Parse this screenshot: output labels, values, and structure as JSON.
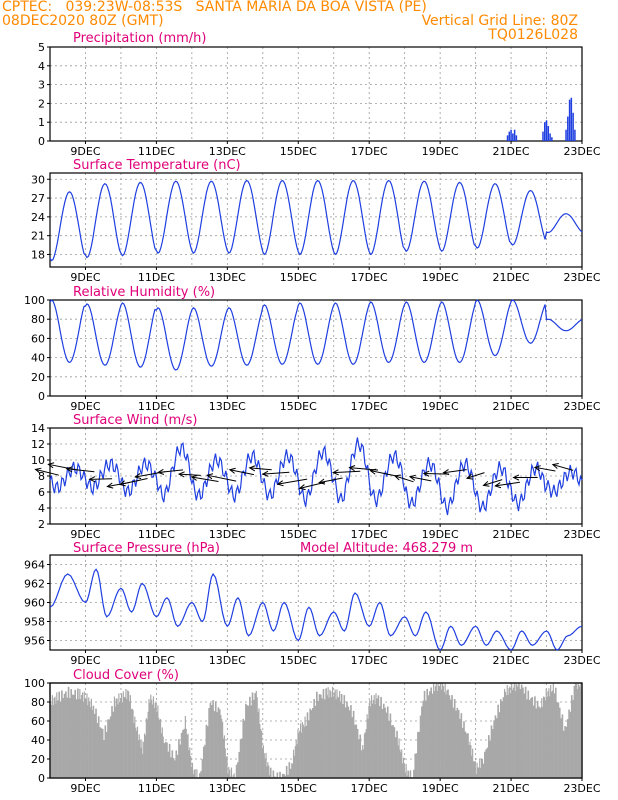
{
  "header": {
    "line1": "CPTEC:   039:23W-08:53S   SANTA MARIA DA BOA VISTA (PE)",
    "line2_left": "08DEC2020 80Z (GMT)",
    "line2_right": "Vertical Grid Line: 80Z",
    "line3_right": "TQ0126L028"
  },
  "colors": {
    "header": "#ff8a00",
    "title": "#e0007a",
    "series": "#1f3fe0",
    "cloud": "#a8a8a8",
    "grid": "#9a9a9a"
  },
  "x_ticks": [
    "9DEC",
    "11DEC",
    "13DEC",
    "15DEC",
    "17DEC",
    "19DEC",
    "21DEC",
    "23DEC"
  ],
  "chart_data": [
    {
      "type": "bar",
      "title": "Precipitation (mm/h)",
      "x_range_days": [
        8,
        23
      ],
      "ylim": [
        0,
        5
      ],
      "yticks": [
        0,
        1,
        2,
        3,
        4,
        5
      ],
      "x": [
        20.9,
        20.95,
        21.0,
        21.05,
        21.1,
        21.15,
        21.9,
        21.95,
        22.0,
        22.05,
        22.1,
        22.15,
        22.55,
        22.6,
        22.65,
        22.7,
        22.75,
        22.8
      ],
      "values": [
        0.3,
        0.5,
        0.6,
        0.4,
        0.6,
        0.3,
        0.5,
        1.0,
        1.1,
        0.8,
        0.4,
        0.2,
        0.6,
        1.3,
        2.2,
        2.3,
        1.5,
        0.6
      ]
    },
    {
      "type": "line",
      "title": "Surface Temperature (nC)",
      "x_range_days": [
        8,
        23
      ],
      "ylim": [
        16,
        31
      ],
      "yticks": [
        18,
        21,
        24,
        27,
        30
      ],
      "daily_max": [
        28.0,
        29.3,
        29.5,
        29.7,
        29.7,
        29.8,
        29.8,
        29.8,
        29.8,
        29.8,
        29.7,
        29.5,
        29.3,
        28.2,
        24.5
      ],
      "daily_min": [
        17.0,
        17.5,
        17.8,
        18.2,
        18.2,
        18.2,
        18.0,
        18.0,
        18.0,
        18.0,
        18.5,
        18.5,
        19.0,
        19.5,
        21.5
      ]
    },
    {
      "type": "line",
      "title": "Relative Humidity (%)",
      "x_range_days": [
        8,
        23
      ],
      "ylim": [
        0,
        100
      ],
      "yticks": [
        0,
        20,
        40,
        60,
        80,
        100
      ],
      "daily_max": [
        100,
        96,
        97,
        92,
        92,
        92,
        95,
        97,
        97,
        98,
        98,
        98,
        100,
        100,
        80
      ],
      "daily_min": [
        35,
        32,
        30,
        27,
        31,
        32,
        33,
        33,
        33,
        35,
        35,
        35,
        42,
        55,
        68
      ]
    },
    {
      "type": "line",
      "title": "Surface Wind (m/s)",
      "x_range_days": [
        8,
        23
      ],
      "ylim": [
        2,
        14
      ],
      "yticks": [
        2,
        4,
        6,
        8,
        10,
        12,
        14
      ],
      "daily_max": [
        9.0,
        9.5,
        9.5,
        11.5,
        10.0,
        10.5,
        10.5,
        11.0,
        12.0,
        10.5,
        9.5,
        9.5,
        9.0,
        9.0,
        8.5
      ],
      "daily_min": [
        6.5,
        6.5,
        6.0,
        5.5,
        5.5,
        5.5,
        5.5,
        5.0,
        5.0,
        5.0,
        4.5,
        4.0,
        4.0,
        4.5,
        6.0
      ],
      "direction": "easterly (arrows point west)"
    },
    {
      "type": "line",
      "title": "Surface Pressure (hPa)",
      "annotation": "Model Altitude: 468.279 m",
      "x_range_days": [
        8,
        23
      ],
      "ylim": [
        955,
        965
      ],
      "yticks": [
        956,
        958,
        960,
        962,
        964
      ],
      "x": [
        8.0,
        8.5,
        9.0,
        9.3,
        9.6,
        10.0,
        10.3,
        10.6,
        11.0,
        11.3,
        11.6,
        12.0,
        12.3,
        12.6,
        13.0,
        13.3,
        13.6,
        14.0,
        14.3,
        14.6,
        15.0,
        15.3,
        15.6,
        16.0,
        16.3,
        16.6,
        17.0,
        17.3,
        17.6,
        18.0,
        18.3,
        18.6,
        19.0,
        19.3,
        19.6,
        20.0,
        20.3,
        20.6,
        21.0,
        21.3,
        21.6,
        22.0,
        22.3,
        22.6,
        23.0
      ],
      "values": [
        959.5,
        963.0,
        960.0,
        963.5,
        958.5,
        961.5,
        959.0,
        962.0,
        958.5,
        960.5,
        957.5,
        960.0,
        958.0,
        963.0,
        957.5,
        960.5,
        956.5,
        960.0,
        957.0,
        960.0,
        956.0,
        959.5,
        956.5,
        959.0,
        957.0,
        961.0,
        957.5,
        960.0,
        956.5,
        958.5,
        956.5,
        959.0,
        955.0,
        957.5,
        955.5,
        957.5,
        955.5,
        957.0,
        955.0,
        957.0,
        955.5,
        957.0,
        955.0,
        956.5,
        957.5
      ]
    },
    {
      "type": "area",
      "title": "Cloud Cover (%)",
      "x_range_days": [
        8,
        23
      ],
      "ylim": [
        0,
        100
      ],
      "yticks": [
        0,
        20,
        40,
        60,
        80,
        100
      ],
      "x": [
        8.0,
        8.2,
        8.5,
        8.8,
        9.0,
        9.2,
        9.5,
        9.8,
        10.0,
        10.2,
        10.4,
        10.6,
        10.8,
        11.0,
        11.2,
        11.5,
        11.8,
        12.0,
        12.2,
        12.5,
        12.8,
        13.0,
        13.2,
        13.5,
        13.8,
        14.0,
        14.2,
        14.5,
        14.8,
        15.0,
        15.2,
        15.5,
        15.8,
        16.0,
        16.2,
        16.5,
        16.8,
        17.0,
        17.2,
        17.5,
        17.8,
        18.0,
        18.2,
        18.5,
        18.8,
        19.0,
        19.2,
        19.5,
        19.8,
        20.0,
        20.2,
        20.5,
        20.8,
        21.0,
        21.2,
        21.5,
        21.8,
        22.0,
        22.2,
        22.5,
        22.8,
        23.0
      ],
      "values": [
        80,
        85,
        90,
        88,
        85,
        75,
        45,
        80,
        85,
        90,
        55,
        30,
        85,
        75,
        40,
        20,
        60,
        10,
        0,
        80,
        70,
        10,
        0,
        75,
        90,
        30,
        5,
        0,
        15,
        50,
        60,
        85,
        90,
        90,
        85,
        70,
        30,
        80,
        85,
        70,
        40,
        10,
        0,
        85,
        95,
        100,
        90,
        70,
        40,
        10,
        20,
        60,
        90,
        95,
        100,
        85,
        75,
        90,
        95,
        50,
        100,
        98
      ]
    }
  ]
}
